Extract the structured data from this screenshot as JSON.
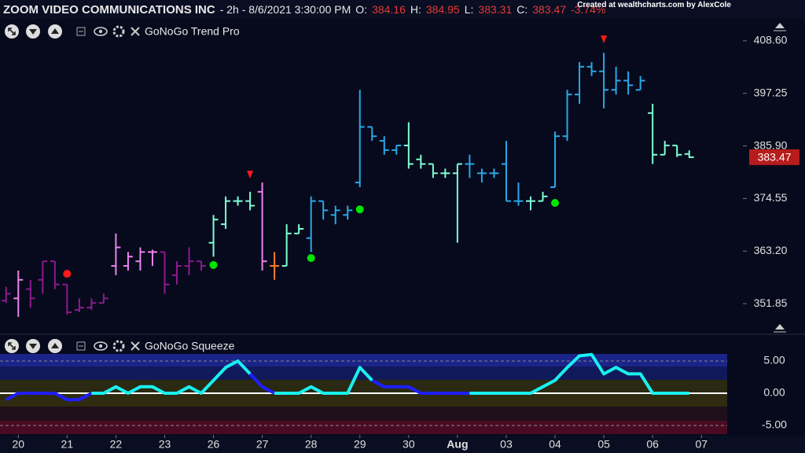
{
  "header": {
    "symbol": "ZOOM VIDEO COMMUNICATIONS INC",
    "interval": "- 2h - 8/6/2021 3:30:00 PM",
    "quote": [
      {
        "label": "O:",
        "value": 384.16
      },
      {
        "label": "H:",
        "value": 384.95
      },
      {
        "label": "L:",
        "value": 383.31
      },
      {
        "label": "C:",
        "value": 383.47
      }
    ],
    "change": "-3.74%",
    "credit": "Created at wealthcharts.com by AlexCole"
  },
  "chart_data": [
    {
      "type": "ohlc",
      "title": "GoNoGo Trend Pro",
      "open": [
        352.5,
        353,
        355,
        357,
        361,
        356,
        350.5,
        351,
        352,
        360,
        360,
        361,
        363,
        363,
        358,
        360,
        361,
        365,
        369,
        374,
        374,
        376,
        360,
        360,
        367,
        366,
        374,
        371,
        371,
        378,
        390,
        387,
        385,
        386,
        383,
        382,
        380,
        380,
        382,
        380,
        380,
        382,
        374,
        374,
        374,
        377,
        388,
        397,
        403,
        402,
        398,
        400,
        398,
        393,
        384,
        386,
        384.16
      ],
      "high": [
        355.5,
        359,
        357,
        361,
        361,
        356,
        353,
        353,
        354,
        367,
        363,
        364,
        363.5,
        363,
        361,
        364,
        361,
        371,
        375,
        375,
        376,
        378,
        363,
        369,
        369,
        375,
        374,
        373,
        373,
        398,
        390,
        388,
        386,
        391,
        384,
        382,
        381,
        382,
        384,
        381,
        381,
        387,
        378,
        375,
        376,
        389,
        398,
        404,
        404,
        406,
        403,
        402,
        401,
        395,
        387,
        386,
        384.95
      ],
      "low": [
        352,
        349,
        351,
        354,
        355,
        349.5,
        350,
        350.5,
        352,
        358,
        359,
        359,
        360,
        354,
        356,
        358,
        359,
        362,
        368,
        373,
        372,
        359,
        357,
        360,
        367,
        363,
        370,
        369,
        370,
        377,
        387,
        384,
        384,
        381,
        381,
        379,
        379,
        365,
        379,
        378,
        379,
        374,
        373,
        372,
        374,
        377,
        387,
        395,
        401,
        394,
        397,
        397,
        398,
        382,
        384,
        383.5,
        383.31
      ],
      "close": [
        354,
        357,
        353,
        361,
        356,
        350,
        351,
        352,
        353,
        364,
        362,
        363,
        363,
        356,
        360,
        361,
        360,
        370,
        374,
        374,
        373,
        361,
        360,
        367,
        368,
        374,
        372,
        372,
        372,
        390,
        388,
        385,
        386,
        382,
        382,
        380,
        380,
        382,
        382,
        380,
        380,
        374,
        374,
        374,
        375,
        388,
        397,
        403,
        402,
        398,
        400,
        399,
        400,
        384,
        386,
        384,
        383.47
      ],
      "colors": [
        "#8e1a8e",
        "#ee82ee",
        "#8e1a8e",
        "#8e1a8e",
        "#8e1a8e",
        "#8e1a8e",
        "#8e1a8e",
        "#8e1a8e",
        "#8e1a8e",
        "#ee82ee",
        "#ee82ee",
        "#ee82ee",
        "#ee82ee",
        "#8e1a8e",
        "#8e1a8e",
        "#8e1a8e",
        "#8e1a8e",
        "#7fffd4",
        "#7fffd4",
        "#7fffd4",
        "#7fffd4",
        "#ee82ee",
        "#ff7f27",
        "#7fffd4",
        "#7fffd4",
        "#29a8e8",
        "#29a8e8",
        "#29a8e8",
        "#29a8e8",
        "#29a8e8",
        "#29a8e8",
        "#29a8e8",
        "#29a8e8",
        "#7fffd4",
        "#7fffd4",
        "#7fffd4",
        "#7fffd4",
        "#7fffd4",
        "#29a8e8",
        "#29a8e8",
        "#29a8e8",
        "#29a8e8",
        "#29a8e8",
        "#7fffd4",
        "#7fffd4",
        "#29a8e8",
        "#29a8e8",
        "#29a8e8",
        "#29a8e8",
        "#29a8e8",
        "#29a8e8",
        "#29a8e8",
        "#29a8e8",
        "#7fffd4",
        "#7fffd4",
        "#7fffd4",
        "#7fffd4"
      ],
      "signals": [
        {
          "shape": "triangle-down",
          "color": "#ff1a1a",
          "x": 20,
          "y": 379.7
        },
        {
          "shape": "triangle-down",
          "color": "#ff1a1a",
          "x": 49,
          "y": 408.9
        },
        {
          "shape": "circle",
          "color": "#ff1a1a",
          "x": 5,
          "y": 358.3
        },
        {
          "shape": "circle",
          "color": "#00e600",
          "x": 17,
          "y": 360.2
        },
        {
          "shape": "circle",
          "color": "#00e600",
          "x": 25,
          "y": 361.7
        },
        {
          "shape": "circle",
          "color": "#00e600",
          "x": 29,
          "y": 372.2
        },
        {
          "shape": "circle",
          "color": "#00e600",
          "x": 45,
          "y": 373.6
        }
      ],
      "last_value": 383.47,
      "xlim": [
        -0.5,
        60.4
      ],
      "ylim": [
        346.1,
        417.4
      ],
      "yticks": [
        {
          "value": 351.85,
          "label": "351.85"
        },
        {
          "value": 363.2,
          "label": "363.20"
        },
        {
          "value": 374.55,
          "label": "374.55"
        },
        {
          "value": 385.9,
          "label": "385.90"
        },
        {
          "value": 397.25,
          "label": "397.25"
        },
        {
          "value": 408.6,
          "label": "408.60"
        }
      ]
    },
    {
      "type": "line",
      "title": "GoNoGo Squeeze",
      "series": [
        {
          "color": "#1e1eff",
          "values": [
            -1,
            0,
            0,
            0,
            0,
            -1,
            -1,
            0,
            null,
            null,
            null,
            null,
            null,
            null,
            null,
            null,
            null,
            null,
            null,
            null,
            3,
            1,
            0,
            null,
            null,
            null,
            null,
            null,
            null,
            null,
            2,
            1,
            1,
            1,
            0,
            0,
            0,
            0,
            0,
            null,
            null,
            null,
            null,
            null,
            null,
            null,
            null,
            null,
            null,
            null,
            null,
            null,
            null,
            null,
            null,
            null,
            null
          ]
        },
        {
          "color": "#19f0f0",
          "values": [
            null,
            null,
            null,
            null,
            null,
            null,
            null,
            0,
            0,
            1,
            0,
            1,
            1,
            0,
            0,
            1,
            0,
            2,
            4,
            5,
            3,
            null,
            0,
            0,
            0,
            1,
            0,
            0,
            0,
            4,
            2,
            null,
            null,
            null,
            null,
            null,
            null,
            null,
            0,
            0,
            0,
            0,
            0,
            0,
            1,
            2,
            4,
            5.8,
            6,
            3,
            4,
            3,
            3,
            0,
            0,
            0,
            0
          ]
        }
      ],
      "xlim": [
        -0.5,
        60.4
      ],
      "ylim": [
        -6.34,
        6.1
      ],
      "xticks": [
        {
          "value": 1,
          "label": "20"
        },
        {
          "value": 5,
          "label": "21"
        },
        {
          "value": 9,
          "label": "22"
        },
        {
          "value": 13,
          "label": "23"
        },
        {
          "value": 17,
          "label": "26"
        },
        {
          "value": 21,
          "label": "27"
        },
        {
          "value": 25,
          "label": "28"
        },
        {
          "value": 29,
          "label": "29"
        },
        {
          "value": 33,
          "label": "30"
        },
        {
          "value": 37,
          "label": "Aug"
        },
        {
          "value": 41,
          "label": "03"
        },
        {
          "value": 45,
          "label": "04"
        },
        {
          "value": 49,
          "label": "05"
        },
        {
          "value": 53,
          "label": "06"
        },
        {
          "value": 57,
          "label": "07"
        }
      ],
      "yticks": [
        {
          "value": 5,
          "label": "5.00"
        },
        {
          "value": 0,
          "label": "0.00"
        },
        {
          "value": -5,
          "label": "-5.00"
        }
      ]
    }
  ]
}
